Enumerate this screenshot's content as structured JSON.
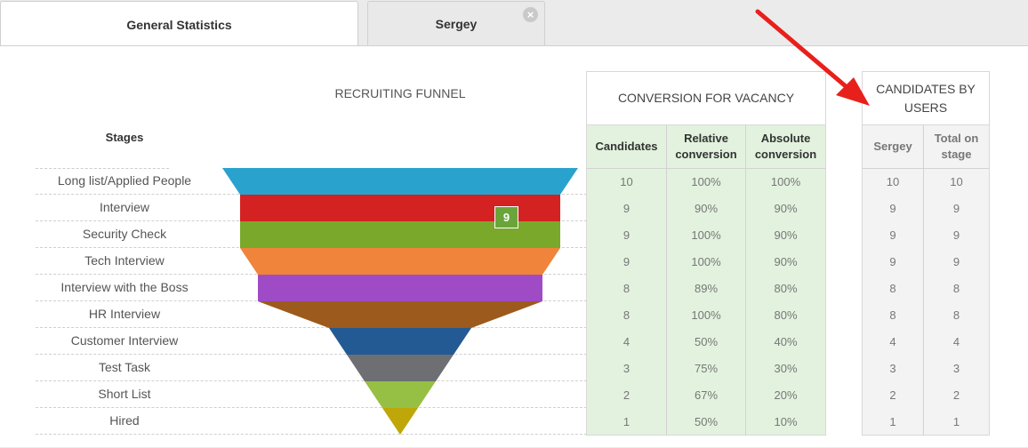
{
  "tabs": [
    {
      "label": "General Statistics",
      "active": true
    },
    {
      "label": "Sergey",
      "active": false,
      "close_icon": "close-icon"
    }
  ],
  "funnel": {
    "title": "RECRUITING FUNNEL",
    "stages_header": "Stages",
    "stages": [
      {
        "name": "Long list/Applied People",
        "count": 10,
        "color": "#2aa2ce"
      },
      {
        "name": "Interview",
        "count": 9,
        "color": "#d42121"
      },
      {
        "name": "Security Check",
        "count": 9,
        "color": "#79a82b"
      },
      {
        "name": "Tech Interview",
        "count": 9,
        "color": "#f0843a"
      },
      {
        "name": "Interview with the Boss",
        "count": 8,
        "color": "#a04bc6"
      },
      {
        "name": "HR Interview",
        "count": 8,
        "color": "#9c5a1c"
      },
      {
        "name": "Customer Interview",
        "count": 4,
        "color": "#245a94"
      },
      {
        "name": "Test Task",
        "count": 3,
        "color": "#6d6f72"
      },
      {
        "name": "Short List",
        "count": 2,
        "color": "#96c044"
      },
      {
        "name": "Hired",
        "count": 1,
        "color": "#bfa709"
      }
    ],
    "tooltip_badge": "9"
  },
  "conversion": {
    "title": "CONVERSION FOR VACANCY",
    "columns": [
      "Candidates",
      "Relative conversion",
      "Absolute conversion"
    ],
    "rows": [
      [
        "10",
        "100%",
        "100%"
      ],
      [
        "9",
        "90%",
        "90%"
      ],
      [
        "9",
        "100%",
        "90%"
      ],
      [
        "9",
        "100%",
        "90%"
      ],
      [
        "8",
        "89%",
        "80%"
      ],
      [
        "8",
        "100%",
        "80%"
      ],
      [
        "4",
        "50%",
        "40%"
      ],
      [
        "3",
        "75%",
        "30%"
      ],
      [
        "2",
        "67%",
        "20%"
      ],
      [
        "1",
        "50%",
        "10%"
      ]
    ]
  },
  "users": {
    "title": "CANDIDATES BY USERS",
    "columns": [
      "Sergey",
      "Total on stage"
    ],
    "rows": [
      [
        "10",
        "10"
      ],
      [
        "9",
        "9"
      ],
      [
        "9",
        "9"
      ],
      [
        "9",
        "9"
      ],
      [
        "8",
        "8"
      ],
      [
        "8",
        "8"
      ],
      [
        "4",
        "4"
      ],
      [
        "3",
        "3"
      ],
      [
        "2",
        "2"
      ],
      [
        "1",
        "1"
      ]
    ]
  },
  "annotation": {
    "arrow_icon": "red-arrow-icon",
    "color": "#e8201c"
  }
}
